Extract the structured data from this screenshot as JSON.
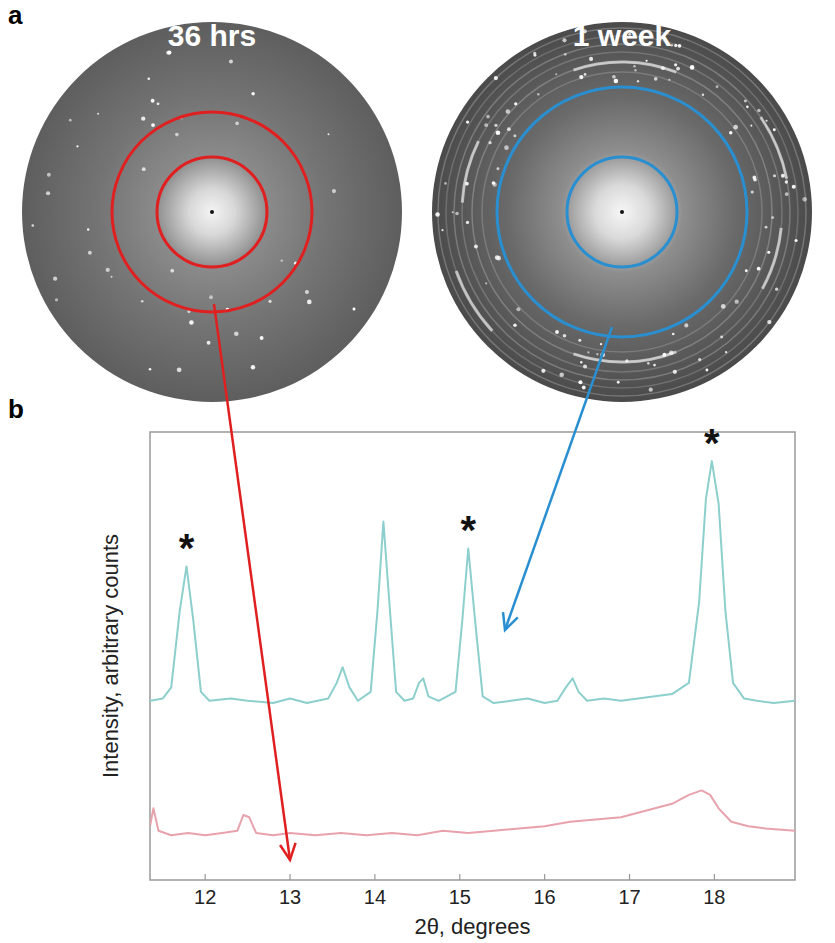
{
  "figure": {
    "panel_a": "a",
    "panel_b": "b",
    "images": [
      {
        "title": "36 hrs",
        "color": "#e02020"
      },
      {
        "title": "1 week",
        "color": "#2a8fd0"
      }
    ]
  },
  "chart_data": {
    "type": "line",
    "x_label": "2θ, degrees",
    "y_label": "Intensity, arbitrary counts",
    "xlim": [
      11.35,
      18.95
    ],
    "xticks": [
      12,
      13,
      14,
      15,
      16,
      17,
      18
    ],
    "ylim": [
      0,
      100
    ],
    "tick_labels": "x",
    "grid": false,
    "series": [
      {
        "color": "#8ccfcc",
        "x": [
          11.35,
          11.5,
          11.6,
          11.7,
          11.78,
          11.86,
          11.95,
          12.05,
          12.3,
          12.5,
          12.8,
          13.0,
          13.2,
          13.45,
          13.55,
          13.62,
          13.7,
          13.8,
          13.95,
          14.03,
          14.1,
          14.17,
          14.25,
          14.35,
          14.45,
          14.52,
          14.57,
          14.63,
          14.75,
          14.95,
          15.03,
          15.1,
          15.18,
          15.27,
          15.4,
          15.6,
          15.8,
          16.0,
          16.15,
          16.25,
          16.33,
          16.4,
          16.5,
          16.7,
          16.9,
          17.1,
          17.3,
          17.5,
          17.7,
          17.82,
          17.9,
          17.97,
          18.05,
          18.13,
          18.22,
          18.35,
          18.5,
          18.7,
          18.95
        ],
        "values": [
          40,
          40.5,
          43,
          60,
          70,
          58,
          42,
          40,
          40.5,
          40,
          39.5,
          40.5,
          39.5,
          40.5,
          44,
          47.5,
          43,
          40,
          42,
          60,
          80,
          62,
          42,
          40,
          40.5,
          44,
          45,
          41,
          40,
          42,
          58,
          74,
          58,
          41,
          39.5,
          40,
          40.5,
          39.5,
          40,
          43,
          45,
          42,
          40,
          40.5,
          40,
          40.5,
          41,
          41.5,
          44,
          62,
          85,
          93.5,
          84,
          60,
          44,
          40.5,
          40,
          39.5,
          40
        ]
      },
      {
        "color": "#e8a2ac",
        "x": [
          11.35,
          11.39,
          11.45,
          11.6,
          11.8,
          12.0,
          12.2,
          12.38,
          12.45,
          12.52,
          12.6,
          12.8,
          13.0,
          13.3,
          13.6,
          13.9,
          14.2,
          14.5,
          14.8,
          15.1,
          15.4,
          15.7,
          16.0,
          16.3,
          16.6,
          16.9,
          17.1,
          17.3,
          17.5,
          17.7,
          17.85,
          17.95,
          18.05,
          18.2,
          18.4,
          18.6,
          18.95
        ],
        "values": [
          12,
          16,
          11,
          10,
          10.5,
          10,
          10.5,
          11,
          14.5,
          14,
          10.5,
          10,
          10.5,
          10,
          10.5,
          10,
          10.5,
          10,
          11,
          10.5,
          11,
          11.5,
          12,
          13,
          13.5,
          14,
          15,
          16,
          17,
          19,
          20,
          19,
          16,
          13,
          12,
          11.5,
          11
        ]
      }
    ],
    "annotations": [
      {
        "text": "*",
        "x": 11.78,
        "y": 70
      },
      {
        "text": "*",
        "x": 15.1,
        "y": 74
      },
      {
        "text": "*",
        "x": 17.97,
        "y": 93.5
      }
    ]
  }
}
